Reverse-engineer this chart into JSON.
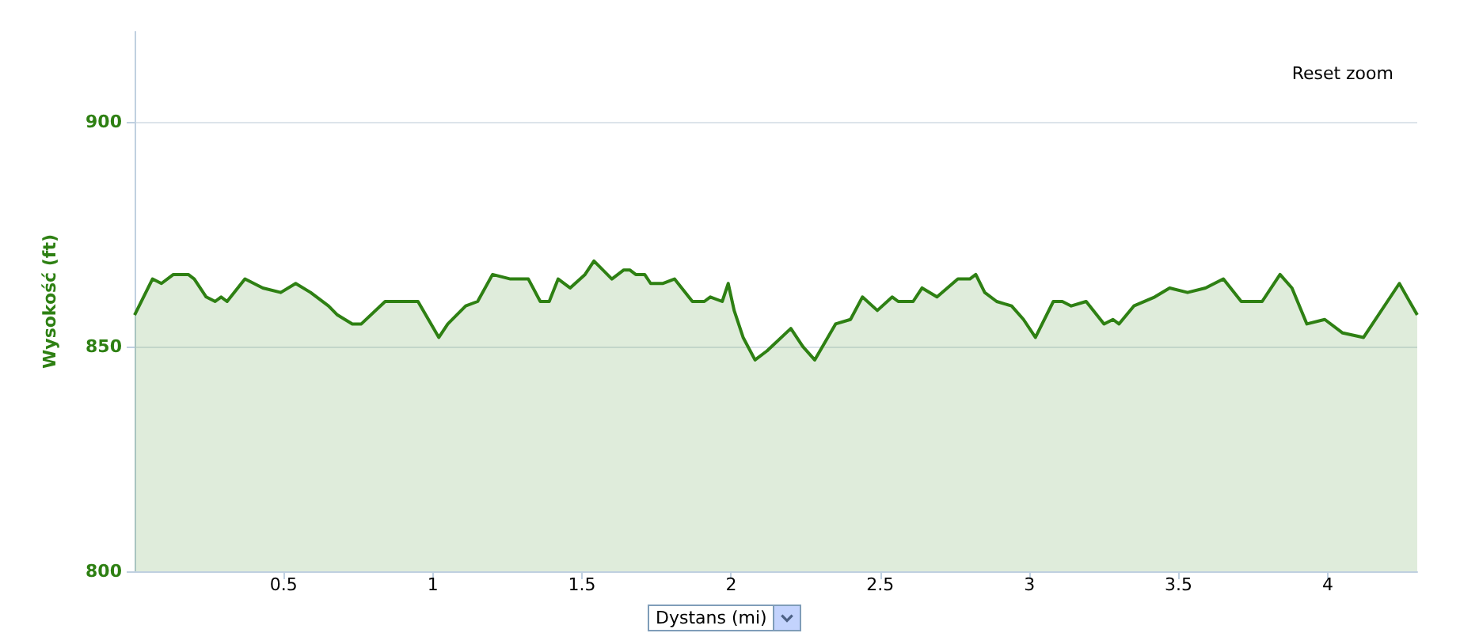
{
  "chart_data": {
    "type": "area",
    "xlabel": "Dystans (mi)",
    "ylabel": "Wysokość (ft)",
    "annotations": [
      "Reset zoom"
    ],
    "x": [
      0,
      0.06,
      0.09,
      0.13,
      0.18,
      0.2,
      0.24,
      0.27,
      0.29,
      0.31,
      0.37,
      0.43,
      0.49,
      0.54,
      0.59,
      0.65,
      0.68,
      0.73,
      0.76,
      0.84,
      0.95,
      1.02,
      1.05,
      1.11,
      1.15,
      1.2,
      1.26,
      1.32,
      1.36,
      1.39,
      1.42,
      1.46,
      1.51,
      1.54,
      1.6,
      1.64,
      1.66,
      1.68,
      1.71,
      1.73,
      1.77,
      1.81,
      1.87,
      1.91,
      1.93,
      1.97,
      1.99,
      2.01,
      2.04,
      2.08,
      2.12,
      2.2,
      2.24,
      2.28,
      2.35,
      2.4,
      2.44,
      2.49,
      2.54,
      2.56,
      2.61,
      2.64,
      2.69,
      2.76,
      2.8,
      2.82,
      2.85,
      2.89,
      2.94,
      2.98,
      3.02,
      3.08,
      3.11,
      3.14,
      3.19,
      3.25,
      3.28,
      3.3,
      3.35,
      3.42,
      3.47,
      3.53,
      3.59,
      3.65,
      3.71,
      3.76,
      3.78,
      3.84,
      3.88,
      3.93,
      3.99,
      4.05,
      4.12,
      4.24,
      4.3
    ],
    "series": [
      {
        "color": "#2e8013",
        "values": [
          857,
          865,
          864,
          866,
          866,
          865,
          861,
          860,
          861,
          860,
          865,
          863,
          862,
          864,
          862,
          859,
          857,
          855,
          855,
          860,
          860,
          852,
          855,
          859,
          860,
          866,
          865,
          865,
          860,
          860,
          865,
          863,
          866,
          869,
          865,
          867,
          867,
          866,
          866,
          864,
          864,
          865,
          860,
          860,
          861,
          860,
          864,
          858,
          852,
          847,
          849,
          854,
          850,
          847,
          855,
          856,
          861,
          858,
          861,
          860,
          860,
          863,
          861,
          865,
          865,
          866,
          862,
          860,
          859,
          856,
          852,
          860,
          860,
          859,
          860,
          855,
          856,
          855,
          859,
          861,
          863,
          862,
          863,
          865,
          860,
          860,
          860,
          866,
          863,
          855,
          856,
          853,
          852,
          864,
          857
        ]
      }
    ],
    "xlim": [
      0,
      4.3
    ],
    "xticks": [
      0.5,
      1,
      1.5,
      2,
      2.5,
      3,
      3.5,
      4
    ],
    "ylim": [
      800,
      920
    ],
    "yticks": [
      800,
      850,
      900
    ],
    "grid": "y",
    "marker": "none",
    "line_style": "solid"
  }
}
